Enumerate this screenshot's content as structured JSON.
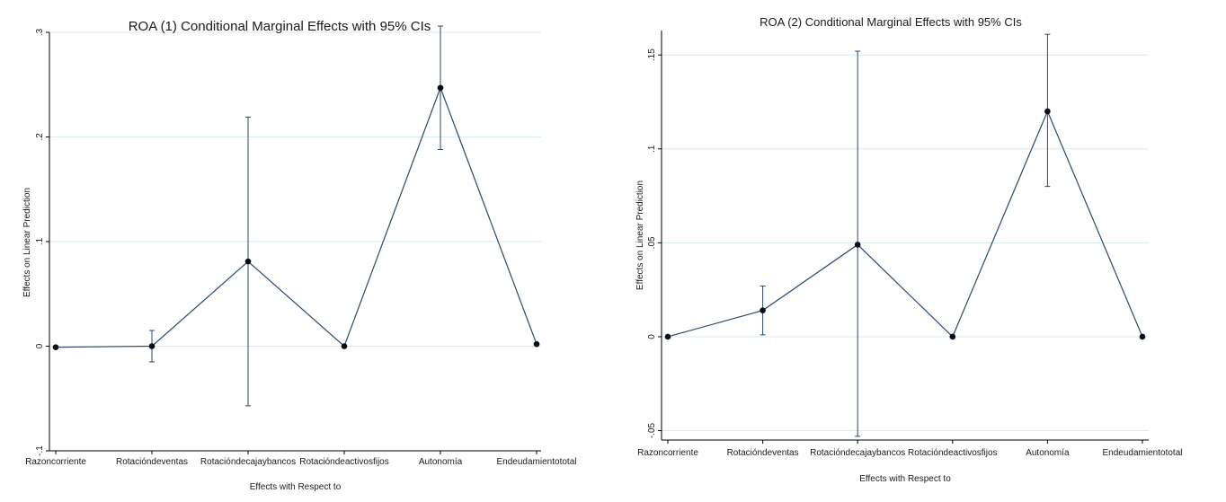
{
  "chart_data": [
    {
      "type": "line",
      "title": "ROA (1) Conditional Marginal Effects with 95% CIs",
      "xlabel": "Effects with Respect to",
      "ylabel": "Effects on Linear Prediction",
      "categories": [
        "Razoncorriente",
        "Rotacióndeventas",
        "Rotacióndecajaybancos",
        "Rotacióndeactivosfijos",
        "Autonomía",
        "Endeudamientototal"
      ],
      "values": [
        -0.001,
        0.0,
        0.081,
        0.0,
        0.247,
        0.002
      ],
      "ci_lower": [
        -0.001,
        -0.015,
        -0.057,
        0.0,
        0.188,
        0.002
      ],
      "ci_upper": [
        -0.001,
        0.015,
        0.219,
        0.0,
        0.306,
        0.002
      ],
      "ylim": [
        -0.1,
        0.3
      ],
      "yticks": [
        -0.1,
        0,
        0.1,
        0.2,
        0.3
      ],
      "ytick_labels": [
        "-.1",
        "0",
        ".1",
        ".2",
        ".3"
      ],
      "grid": true,
      "colors": {
        "line": "#2a4a6b",
        "marker": "#0b0b1a",
        "grid": "#d6ecee",
        "axis": "#000000"
      }
    },
    {
      "type": "line",
      "title": "ROA (2) Conditional Marginal Effects with 95% CIs",
      "xlabel": "Effects with Respect to",
      "ylabel": "Effects on Linear Prediction",
      "categories": [
        "Razoncorriente",
        "Rotacióndeventas",
        "Rotacióndecajaybancos",
        "Rotacióndeactivosfijos",
        "Autonomía",
        "Endeudamientototal"
      ],
      "values": [
        0.0,
        0.014,
        0.049,
        0.0,
        0.12,
        0.0
      ],
      "ci_lower": [
        0.0,
        0.001,
        -0.053,
        0.0,
        0.08,
        0.0
      ],
      "ci_upper": [
        0.0,
        0.027,
        0.152,
        0.0,
        0.161,
        0.0
      ],
      "ylim": [
        -0.055,
        0.163
      ],
      "yticks": [
        -0.05,
        0,
        0.05,
        0.1,
        0.15
      ],
      "ytick_labels": [
        "-.05",
        "0",
        ".05",
        ".1",
        ".15"
      ],
      "grid": true,
      "colors": {
        "line": "#2a4a6b",
        "marker": "#0b0b1a",
        "grid": "#d6ecee",
        "axis": "#000000"
      }
    }
  ]
}
